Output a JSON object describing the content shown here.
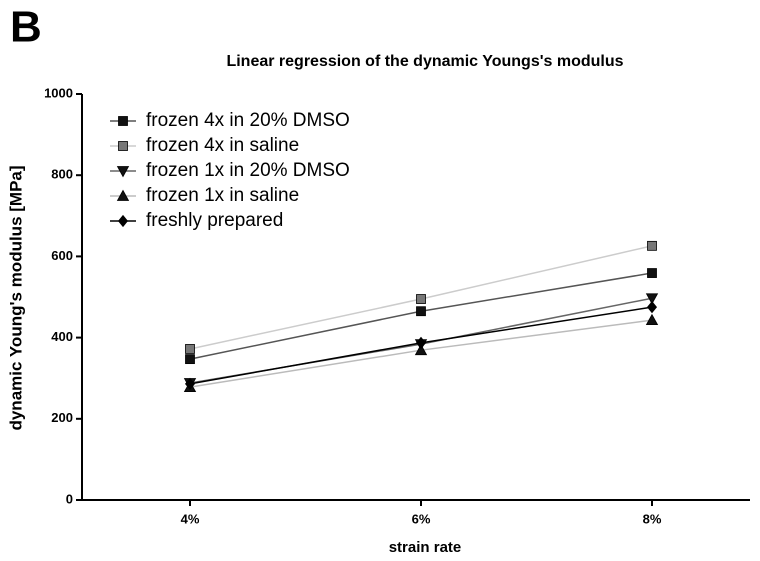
{
  "panel_label": "B",
  "chart_data": {
    "type": "line",
    "title": "Linear regression of the dynamic Youngs's modulus",
    "x_label": "strain rate",
    "y_label": "dynamic Young's modulus [MPa]",
    "categories": [
      "4%",
      "6%",
      "8%"
    ],
    "ylim": [
      0,
      1000
    ],
    "yticks": [
      0,
      200,
      400,
      600,
      800,
      1000
    ],
    "legend": "upper left",
    "series": [
      {
        "name": "frozen 4x in 20% DMSO",
        "color": "#555555",
        "marker_color": "#111111",
        "marker": "square",
        "values": [
          347,
          465,
          559
        ]
      },
      {
        "name": "frozen 4x in saline",
        "color": "#cccccc",
        "marker_color": "#777777",
        "marker": "square",
        "values": [
          372,
          495,
          626
        ]
      },
      {
        "name": "frozen 1x in 20% DMSO",
        "color": "#666666",
        "marker_color": "#111111",
        "marker": "triangle-down",
        "values": [
          288,
          384,
          497
        ]
      },
      {
        "name": "frozen 1x in saline",
        "color": "#bbbbbb",
        "marker_color": "#111111",
        "marker": "triangle-up",
        "values": [
          278,
          369,
          443
        ]
      },
      {
        "name": "freshly prepared",
        "color": "#000000",
        "marker_color": "#000000",
        "marker": "diamond",
        "values": [
          286,
          387,
          475
        ]
      }
    ]
  }
}
